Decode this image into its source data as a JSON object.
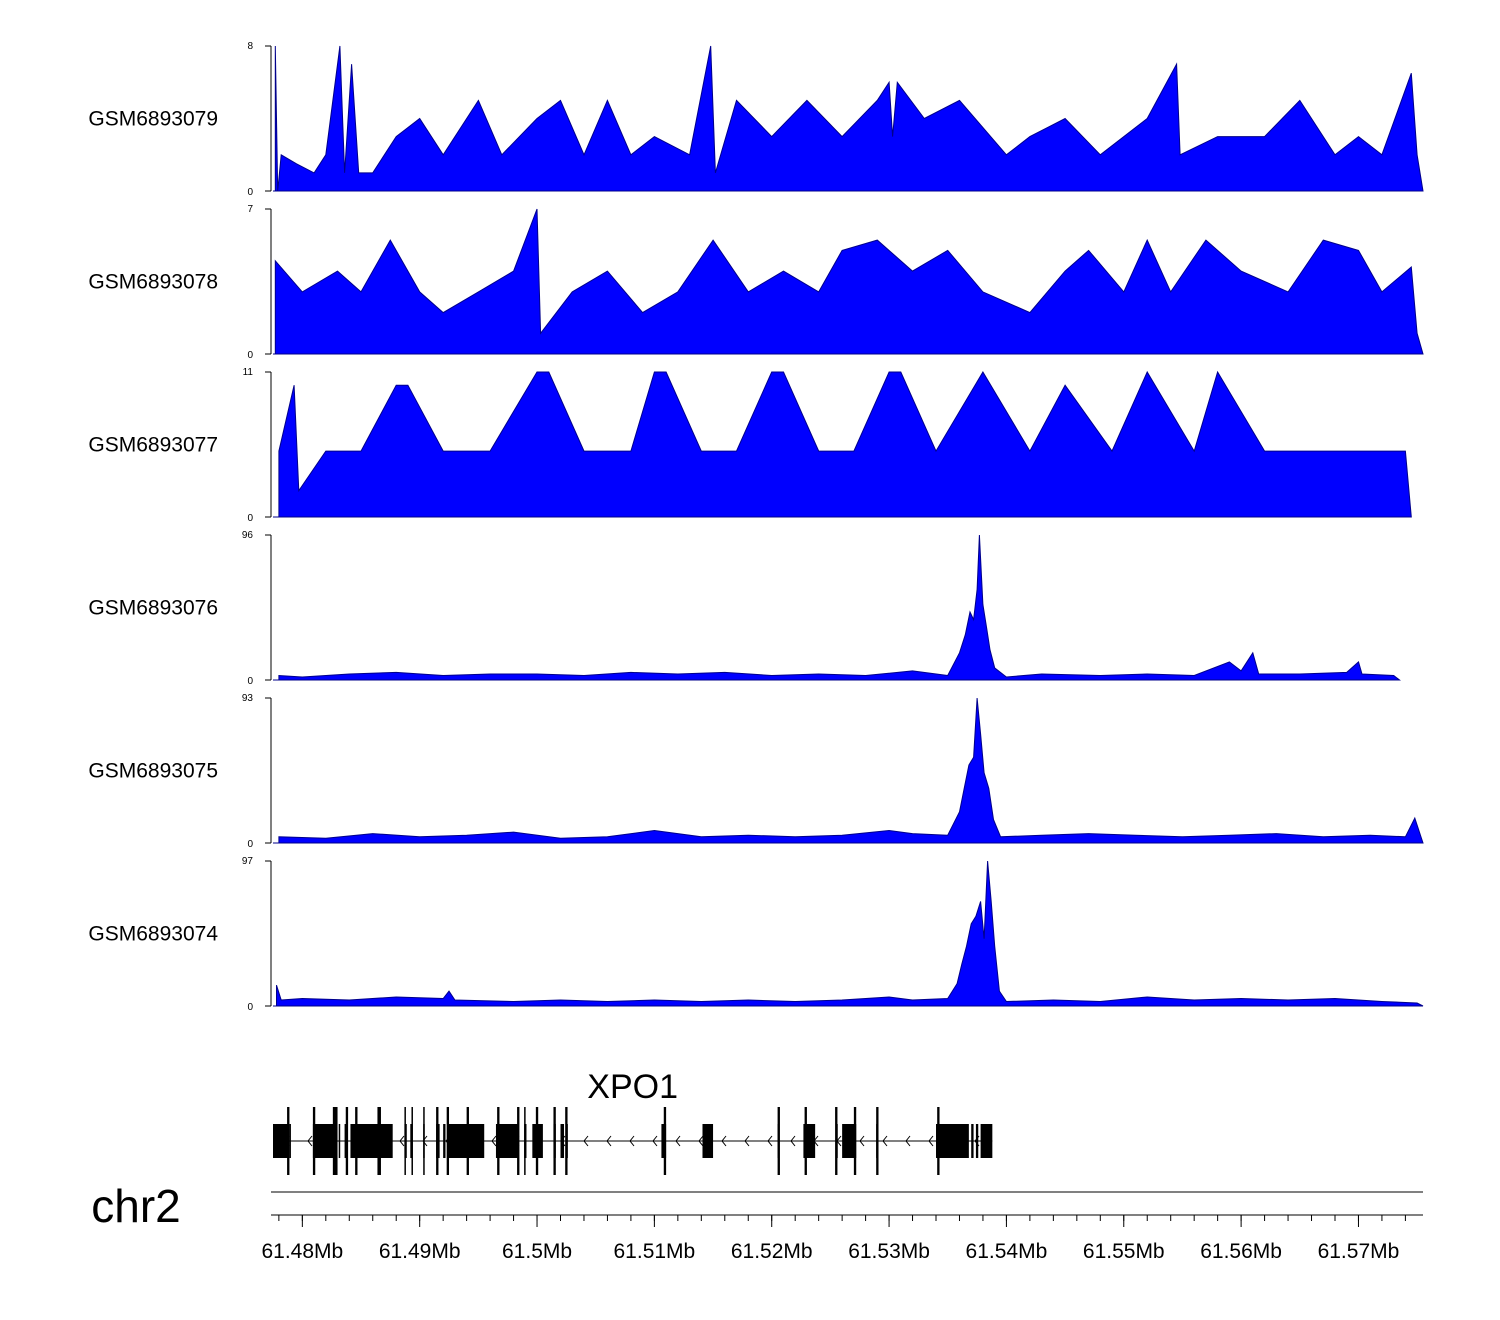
{
  "chart_data": {
    "type": "area",
    "title": "",
    "chromosome": "chr2",
    "x_range_mb": [
      61.4775,
      61.5755
    ],
    "x_ticks": [
      "61.48Mb",
      "61.49Mb",
      "61.5Mb",
      "61.51Mb",
      "61.52Mb",
      "61.53Mb",
      "61.54Mb",
      "61.55Mb",
      "61.56Mb",
      "61.57Mb"
    ],
    "x_tick_values_mb": [
      61.48,
      61.49,
      61.5,
      61.51,
      61.52,
      61.53,
      61.54,
      61.55,
      61.56,
      61.57
    ],
    "fill_color": "#0000ff",
    "gene_color": "#000000",
    "tracks": [
      {
        "name": "GSM6893079",
        "ymax": 8,
        "ymax_label": "8",
        "ymin_label": "0",
        "end_mb": 61.5755,
        "points": [
          [
            61.4777,
            8
          ],
          [
            61.4779,
            0
          ],
          [
            61.4782,
            2
          ],
          [
            61.4795,
            1.5
          ],
          [
            61.481,
            1
          ],
          [
            61.482,
            2
          ],
          [
            61.4832,
            8
          ],
          [
            61.4836,
            1
          ],
          [
            61.4842,
            7
          ],
          [
            61.4848,
            1
          ],
          [
            61.486,
            1
          ],
          [
            61.488,
            3
          ],
          [
            61.49,
            4
          ],
          [
            61.492,
            2
          ],
          [
            61.495,
            5
          ],
          [
            61.497,
            2
          ],
          [
            61.5,
            4
          ],
          [
            61.502,
            5
          ],
          [
            61.504,
            2
          ],
          [
            61.506,
            5
          ],
          [
            61.508,
            2
          ],
          [
            61.51,
            3
          ],
          [
            61.513,
            2
          ],
          [
            61.5148,
            8
          ],
          [
            61.5152,
            1
          ],
          [
            61.517,
            5
          ],
          [
            61.52,
            3
          ],
          [
            61.523,
            5
          ],
          [
            61.526,
            3
          ],
          [
            61.529,
            5
          ],
          [
            61.53,
            6
          ],
          [
            61.5303,
            3
          ],
          [
            61.5307,
            6
          ],
          [
            61.533,
            4
          ],
          [
            61.536,
            5
          ],
          [
            61.54,
            2
          ],
          [
            61.542,
            3
          ],
          [
            61.545,
            4
          ],
          [
            61.548,
            2
          ],
          [
            61.552,
            4
          ],
          [
            61.5545,
            7
          ],
          [
            61.5548,
            2
          ],
          [
            61.558,
            3
          ],
          [
            61.562,
            3
          ],
          [
            61.565,
            5
          ],
          [
            61.568,
            2
          ],
          [
            61.57,
            3
          ],
          [
            61.572,
            2
          ],
          [
            61.5745,
            6.5
          ],
          [
            61.575,
            2
          ]
        ]
      },
      {
        "name": "GSM6893078",
        "ymax": 7,
        "ymax_label": "7",
        "ymin_label": "0",
        "end_mb": 61.5755,
        "points": [
          [
            61.4777,
            4.5
          ],
          [
            61.48,
            3
          ],
          [
            61.483,
            4
          ],
          [
            61.485,
            3
          ],
          [
            61.4875,
            5.5
          ],
          [
            61.49,
            3
          ],
          [
            61.492,
            2
          ],
          [
            61.495,
            3
          ],
          [
            61.498,
            4
          ],
          [
            61.5,
            7
          ],
          [
            61.5003,
            1
          ],
          [
            61.503,
            3
          ],
          [
            61.506,
            4
          ],
          [
            61.509,
            2
          ],
          [
            61.512,
            3
          ],
          [
            61.515,
            5.5
          ],
          [
            61.518,
            3
          ],
          [
            61.521,
            4
          ],
          [
            61.524,
            3
          ],
          [
            61.526,
            5
          ],
          [
            61.529,
            5.5
          ],
          [
            61.532,
            4
          ],
          [
            61.535,
            5
          ],
          [
            61.538,
            3
          ],
          [
            61.542,
            2
          ],
          [
            61.545,
            4
          ],
          [
            61.547,
            5
          ],
          [
            61.55,
            3
          ],
          [
            61.552,
            5.5
          ],
          [
            61.554,
            3
          ],
          [
            61.557,
            5.5
          ],
          [
            61.56,
            4
          ],
          [
            61.564,
            3
          ],
          [
            61.567,
            5.5
          ],
          [
            61.57,
            5
          ],
          [
            61.572,
            3
          ],
          [
            61.5745,
            4.2
          ],
          [
            61.575,
            1
          ]
        ]
      },
      {
        "name": "GSM6893077",
        "ymax": 11,
        "ymax_label": "11",
        "ymin_label": "0",
        "end_mb": 61.5745,
        "points": [
          [
            61.478,
            5
          ],
          [
            61.4793,
            10
          ],
          [
            61.4797,
            2
          ],
          [
            61.482,
            5
          ],
          [
            61.485,
            5
          ],
          [
            61.488,
            10
          ],
          [
            61.489,
            10
          ],
          [
            61.492,
            5
          ],
          [
            61.496,
            5
          ],
          [
            61.5,
            11
          ],
          [
            61.501,
            11
          ],
          [
            61.504,
            5
          ],
          [
            61.508,
            5
          ],
          [
            61.51,
            11
          ],
          [
            61.511,
            11
          ],
          [
            61.514,
            5
          ],
          [
            61.517,
            5
          ],
          [
            61.52,
            11
          ],
          [
            61.521,
            11
          ],
          [
            61.524,
            5
          ],
          [
            61.527,
            5
          ],
          [
            61.53,
            11
          ],
          [
            61.531,
            11
          ],
          [
            61.534,
            5
          ],
          [
            61.538,
            11
          ],
          [
            61.542,
            5
          ],
          [
            61.545,
            10
          ],
          [
            61.549,
            5
          ],
          [
            61.552,
            11
          ],
          [
            61.556,
            5
          ],
          [
            61.558,
            11
          ],
          [
            61.562,
            5
          ],
          [
            61.566,
            5
          ],
          [
            61.57,
            5
          ],
          [
            61.574,
            5
          ]
        ]
      },
      {
        "name": "GSM6893076",
        "ymax": 96,
        "ymax_label": "96",
        "ymin_label": "0",
        "end_mb": 61.5735,
        "points": [
          [
            61.478,
            3
          ],
          [
            61.48,
            2
          ],
          [
            61.484,
            4
          ],
          [
            61.488,
            5
          ],
          [
            61.492,
            3
          ],
          [
            61.496,
            4
          ],
          [
            61.5,
            4
          ],
          [
            61.504,
            3
          ],
          [
            61.508,
            5
          ],
          [
            61.512,
            4
          ],
          [
            61.516,
            5
          ],
          [
            61.52,
            3
          ],
          [
            61.524,
            4
          ],
          [
            61.528,
            3
          ],
          [
            61.532,
            6
          ],
          [
            61.535,
            3
          ],
          [
            61.536,
            18
          ],
          [
            61.5365,
            30
          ],
          [
            61.5369,
            45
          ],
          [
            61.5372,
            40
          ],
          [
            61.5375,
            60
          ],
          [
            61.5377,
            96
          ],
          [
            61.538,
            50
          ],
          [
            61.5383,
            35
          ],
          [
            61.5386,
            20
          ],
          [
            61.539,
            8
          ],
          [
            61.54,
            2
          ],
          [
            61.543,
            4
          ],
          [
            61.548,
            3
          ],
          [
            61.552,
            4
          ],
          [
            61.556,
            3
          ],
          [
            61.559,
            12
          ],
          [
            61.56,
            6
          ],
          [
            61.561,
            18
          ],
          [
            61.5615,
            4
          ],
          [
            61.565,
            4
          ],
          [
            61.569,
            5
          ],
          [
            61.57,
            12
          ],
          [
            61.5703,
            4
          ],
          [
            61.573,
            3
          ]
        ]
      },
      {
        "name": "GSM6893075",
        "ymax": 93,
        "ymax_label": "93",
        "ymin_label": "0",
        "end_mb": 61.5755,
        "points": [
          [
            61.478,
            4
          ],
          [
            61.482,
            3
          ],
          [
            61.486,
            6
          ],
          [
            61.49,
            4
          ],
          [
            61.494,
            5
          ],
          [
            61.498,
            7
          ],
          [
            61.502,
            3
          ],
          [
            61.506,
            4
          ],
          [
            61.51,
            8
          ],
          [
            61.514,
            4
          ],
          [
            61.518,
            5
          ],
          [
            61.522,
            4
          ],
          [
            61.526,
            5
          ],
          [
            61.53,
            8
          ],
          [
            61.532,
            6
          ],
          [
            61.535,
            5
          ],
          [
            61.536,
            20
          ],
          [
            61.5364,
            35
          ],
          [
            61.5368,
            50
          ],
          [
            61.5372,
            55
          ],
          [
            61.5375,
            93
          ],
          [
            61.5378,
            70
          ],
          [
            61.5381,
            45
          ],
          [
            61.5385,
            35
          ],
          [
            61.5389,
            15
          ],
          [
            61.5395,
            4
          ],
          [
            61.543,
            5
          ],
          [
            61.547,
            6
          ],
          [
            61.551,
            5
          ],
          [
            61.555,
            4
          ],
          [
            61.559,
            5
          ],
          [
            61.563,
            6
          ],
          [
            61.567,
            4
          ],
          [
            61.571,
            5
          ],
          [
            61.574,
            4
          ],
          [
            61.5748,
            16
          ]
        ]
      },
      {
        "name": "GSM6893074",
        "ymax": 97,
        "ymax_label": "97",
        "ymin_label": "0",
        "end_mb": 61.5755,
        "points": [
          [
            61.4778,
            14
          ],
          [
            61.4782,
            4
          ],
          [
            61.48,
            5
          ],
          [
            61.484,
            4
          ],
          [
            61.488,
            6
          ],
          [
            61.492,
            5
          ],
          [
            61.4925,
            10
          ],
          [
            61.493,
            4
          ],
          [
            61.498,
            3
          ],
          [
            61.502,
            4
          ],
          [
            61.506,
            3
          ],
          [
            61.51,
            4
          ],
          [
            61.514,
            3
          ],
          [
            61.518,
            4
          ],
          [
            61.522,
            3
          ],
          [
            61.526,
            4
          ],
          [
            61.53,
            6
          ],
          [
            61.532,
            4
          ],
          [
            61.535,
            5
          ],
          [
            61.5358,
            15
          ],
          [
            61.5362,
            28
          ],
          [
            61.5366,
            40
          ],
          [
            61.537,
            55
          ],
          [
            61.5374,
            60
          ],
          [
            61.5378,
            70
          ],
          [
            61.5381,
            45
          ],
          [
            61.5384,
            97
          ],
          [
            61.5387,
            70
          ],
          [
            61.539,
            40
          ],
          [
            61.5394,
            10
          ],
          [
            61.54,
            3
          ],
          [
            61.544,
            4
          ],
          [
            61.548,
            3
          ],
          [
            61.552,
            6
          ],
          [
            61.556,
            4
          ],
          [
            61.56,
            5
          ],
          [
            61.564,
            4
          ],
          [
            61.568,
            5
          ],
          [
            61.572,
            3
          ],
          [
            61.575,
            2
          ]
        ]
      }
    ],
    "gene": {
      "name": "XPO1",
      "strand": "-",
      "start_mb": 61.4775,
      "end_mb": 61.5388,
      "exons": [
        [
          61.4775,
          61.4788
        ],
        [
          61.4789,
          61.479
        ],
        [
          61.4809,
          61.4828
        ],
        [
          61.4831,
          61.4832
        ],
        [
          61.4836,
          61.4837
        ],
        [
          61.4841,
          61.4877
        ],
        [
          61.4887,
          61.4889
        ],
        [
          61.4892,
          61.4894
        ],
        [
          61.4903,
          61.4904
        ],
        [
          61.4914,
          61.4917
        ],
        [
          61.492,
          61.4922
        ],
        [
          61.4924,
          61.4955
        ],
        [
          61.4965,
          61.4984
        ],
        [
          61.4989,
          61.4991
        ],
        [
          61.4996,
          61.5005
        ],
        [
          61.5014,
          61.5016
        ],
        [
          61.502,
          61.5023
        ],
        [
          61.5025,
          61.5026
        ],
        [
          61.5106,
          61.511
        ],
        [
          61.5141,
          61.515
        ],
        [
          61.5205,
          61.5206
        ],
        [
          61.5227,
          61.5237
        ],
        [
          61.5255,
          61.5256
        ],
        [
          61.526,
          61.5272
        ],
        [
          61.5289,
          61.529
        ],
        [
          61.534,
          61.5368
        ],
        [
          61.537,
          61.5372
        ],
        [
          61.5374,
          61.5376
        ],
        [
          61.5378,
          61.5388
        ]
      ],
      "tall_exons": [
        [
          61.4787,
          61.4789
        ],
        [
          61.4809,
          61.4811
        ],
        [
          61.4826,
          61.483
        ],
        [
          61.4837,
          61.4839
        ],
        [
          61.4845,
          61.4847
        ],
        [
          61.4864,
          61.4867
        ],
        [
          61.4887,
          61.4888
        ],
        [
          61.4893,
          61.4894
        ],
        [
          61.4903,
          61.4904
        ],
        [
          61.4914,
          61.4916
        ],
        [
          61.4923,
          61.4925
        ],
        [
          61.494,
          61.4942
        ],
        [
          61.4966,
          61.4968
        ],
        [
          61.4983,
          61.4985
        ],
        [
          61.4989,
          61.499
        ],
        [
          61.4999,
          61.5001
        ],
        [
          61.5014,
          61.5016
        ],
        [
          61.5024,
          61.5026
        ],
        [
          61.5108,
          61.511
        ],
        [
          61.5205,
          61.5207
        ],
        [
          61.5228,
          61.523
        ],
        [
          61.5254,
          61.5256
        ],
        [
          61.527,
          61.5272
        ],
        [
          61.5289,
          61.5291
        ],
        [
          61.5341,
          61.5343
        ]
      ]
    }
  }
}
